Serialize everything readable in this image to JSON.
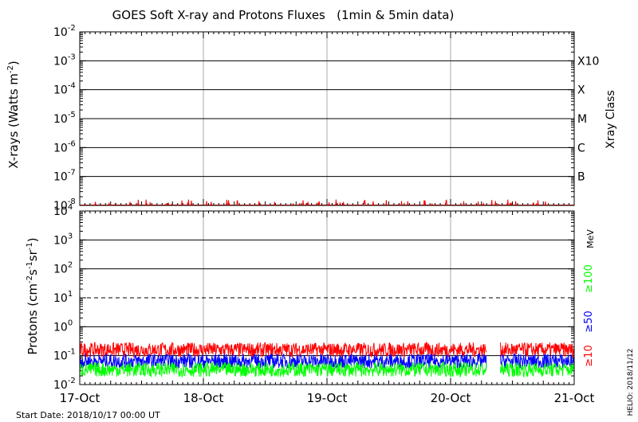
{
  "chart_data": [
    {
      "type": "line",
      "panel": "xrays",
      "title": "GOES Soft X-ray and Protons Fluxes   (1min & 5min data)",
      "ylabel": "X-rays (Watts m-2)",
      "ylabel_parts": [
        "X-rays (Watts m",
        "-2",
        ")"
      ],
      "right_label": "Xray Class",
      "yscale": "log",
      "ylim": [
        1e-08,
        0.01
      ],
      "y_ticks": [
        {
          "base": "10",
          "exp": "-2",
          "value": 0.01
        },
        {
          "base": "10",
          "exp": "-3",
          "value": 0.001
        },
        {
          "base": "10",
          "exp": "-4",
          "value": 0.0001
        },
        {
          "base": "10",
          "exp": "-5",
          "value": 1e-05
        },
        {
          "base": "10",
          "exp": "-6",
          "value": 1e-06
        },
        {
          "base": "10",
          "exp": "-7",
          "value": 1e-07
        },
        {
          "base": "10",
          "exp": "-8",
          "value": 1e-08
        }
      ],
      "classes": [
        {
          "label": "X10",
          "value": 0.001
        },
        {
          "label": "X",
          "value": 0.0001
        },
        {
          "label": "M",
          "value": 1e-05
        },
        {
          "label": "C",
          "value": 1e-06
        },
        {
          "label": "B",
          "value": 1e-07
        }
      ],
      "series": [
        {
          "color": "#ff0000",
          "baseline": 1e-08,
          "peak": 1.6e-08
        }
      ]
    },
    {
      "type": "line",
      "panel": "protons",
      "ylabel": "Protons (cm-2s-1sr-1)",
      "ylabel_parts": [
        "Protons (cm",
        "-2",
        "s",
        "-1",
        "sr",
        "-1",
        ")"
      ],
      "yscale": "log",
      "ylim": [
        0.01,
        10000
      ],
      "y_ticks": [
        {
          "base": "10",
          "exp": "4",
          "value": 10000
        },
        {
          "base": "10",
          "exp": "3",
          "value": 1000
        },
        {
          "base": "10",
          "exp": "2",
          "value": 100
        },
        {
          "base": "10",
          "exp": "1",
          "value": 10
        },
        {
          "base": "10",
          "exp": "0",
          "value": 1
        },
        {
          "base": "10",
          "exp": "-1",
          "value": 0.1
        },
        {
          "base": "10",
          "exp": "-2",
          "value": 0.01
        }
      ],
      "unit": "MeV",
      "dashed_threshold": 10,
      "data_gap": [
        "2018-10-20 07:00",
        "2018-10-20 09:40"
      ],
      "series": [
        {
          "name": "≥10",
          "color": "#ff0000",
          "level": 0.16
        },
        {
          "name": "≥50",
          "color": "#0000ff",
          "level": 0.065
        },
        {
          "name": "≥100",
          "color": "#00ff00",
          "level": 0.033
        }
      ]
    }
  ],
  "x_ticks": [
    "17-Oct",
    "18-Oct",
    "19-Oct",
    "20-Oct",
    "21-Oct"
  ],
  "x_range": [
    "2018-10-17 00:00",
    "2018-10-21 00:00"
  ],
  "start_date": "Start Date: 2018/10/17 00:00 UT",
  "credit": "HELIO: 2018/11/12",
  "colors": {
    "axis": "#000000",
    "grid": "#000000",
    "day_line": "#aaaaaa"
  }
}
